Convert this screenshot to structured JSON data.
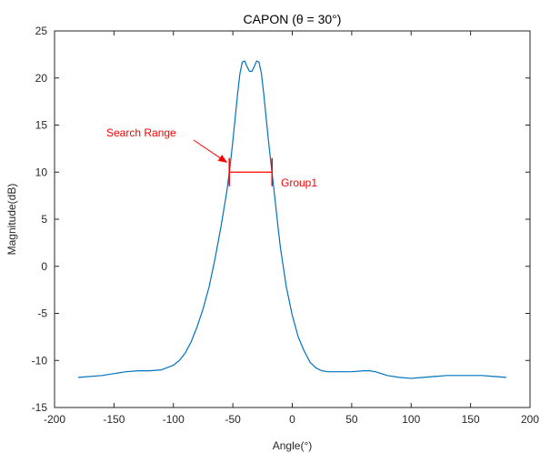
{
  "chart_data": {
    "type": "line",
    "title": "CAPON (θ = 30°)",
    "xlabel": "Angle(°)",
    "ylabel": "Magnitude(dB)",
    "xlim": [
      -200,
      200
    ],
    "ylim": [
      -15,
      25
    ],
    "xticks": [
      -200,
      -150,
      -100,
      -50,
      0,
      50,
      100,
      150,
      200
    ],
    "yticks": [
      -15,
      -10,
      -5,
      0,
      5,
      10,
      15,
      20,
      25
    ],
    "xtick_labels": [
      "-200",
      "-150",
      "-100",
      "-50",
      "0",
      "50",
      "100",
      "150",
      "200"
    ],
    "ytick_labels": [
      "-15",
      "-10",
      "-5",
      "0",
      "5",
      "10",
      "15",
      "20",
      "25"
    ],
    "grid": false,
    "colors": {
      "series": "#0072BD",
      "annotation": "#FF0000"
    },
    "series": [
      {
        "x": [
          -180,
          -160,
          -140,
          -130,
          -120,
          -110,
          -100,
          -95,
          -90,
          -85,
          -80,
          -75,
          -70,
          -65,
          -60,
          -55,
          -52,
          -50,
          -48,
          -46,
          -44,
          -42,
          -40,
          -38,
          -36,
          -34,
          -32,
          -30,
          -28,
          -26,
          -24,
          -22,
          -20,
          -18,
          -16,
          -14,
          -12,
          -10,
          -5,
          0,
          5,
          10,
          15,
          20,
          25,
          30,
          40,
          50,
          60,
          65,
          70,
          80,
          90,
          100,
          110,
          120,
          130,
          140,
          150,
          160,
          170,
          180
        ],
        "y": [
          -11.8,
          -11.6,
          -11.2,
          -11.1,
          -11.1,
          -11.0,
          -10.5,
          -10.0,
          -9.2,
          -8.0,
          -6.4,
          -4.5,
          -2.2,
          0.8,
          4.2,
          8.0,
          11.0,
          13.3,
          15.8,
          18.3,
          20.5,
          21.7,
          21.8,
          21.2,
          20.7,
          20.7,
          21.2,
          21.8,
          21.7,
          20.5,
          18.3,
          15.8,
          13.3,
          11.0,
          8.8,
          6.5,
          4.2,
          2.0,
          -2.2,
          -5.2,
          -7.5,
          -9.0,
          -10.2,
          -10.8,
          -11.1,
          -11.2,
          -11.2,
          -11.2,
          -11.1,
          -11.1,
          -11.2,
          -11.6,
          -11.8,
          -11.9,
          -11.8,
          -11.7,
          -11.6,
          -11.6,
          -11.6,
          -11.6,
          -11.7,
          -11.8
        ]
      }
    ],
    "annotations": {
      "search_range_label": "Search Range",
      "group_label": "Group1",
      "search_range": {
        "x_start": -53,
        "x_end": -17,
        "y": 10,
        "y_bar_low": 8.5,
        "y_bar_high": 11.5
      },
      "arrow_tip": {
        "x": -53,
        "y": 10.6
      }
    }
  }
}
